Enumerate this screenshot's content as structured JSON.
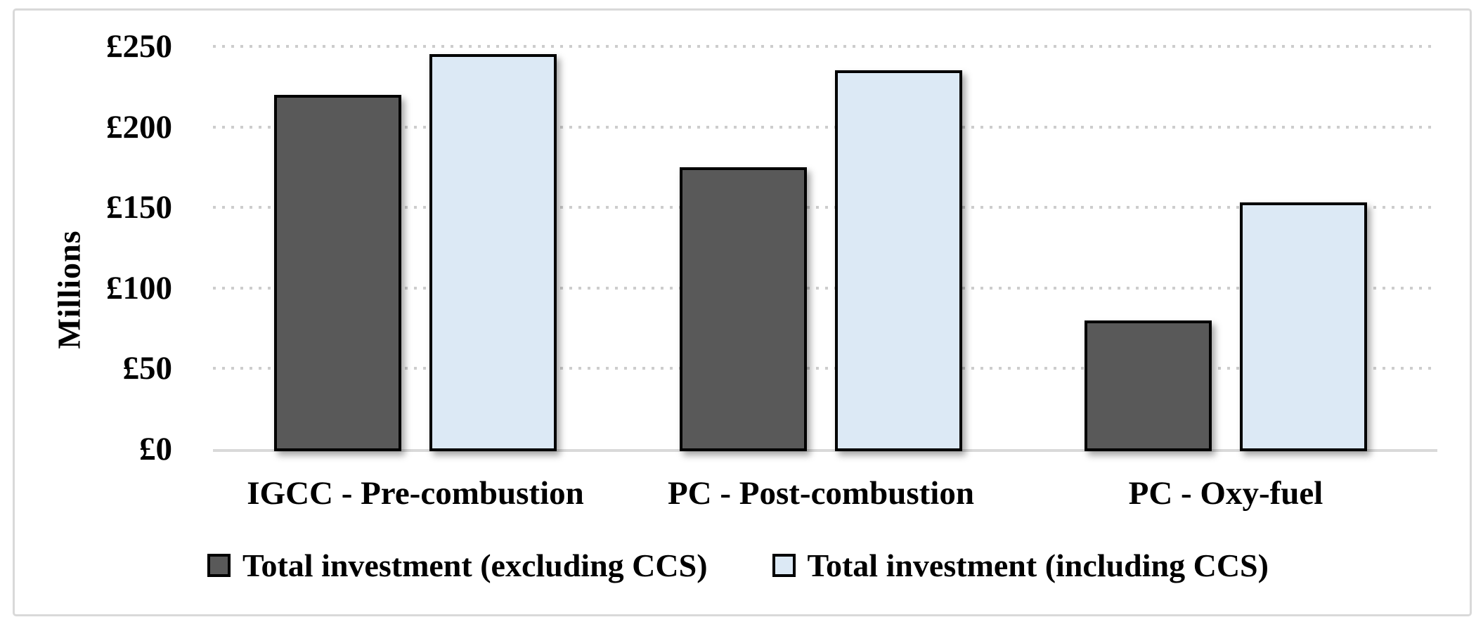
{
  "chart_data": {
    "type": "bar",
    "title": "",
    "xlabel": "",
    "ylabel": "Millions",
    "currency_prefix": "£",
    "categories": [
      "IGCC - Pre-combustion",
      "PC - Post-combustion",
      "PC - Oxy-fuel"
    ],
    "series": [
      {
        "name": "Total investment (excluding CCS)",
        "color": "#595959",
        "border_color": "#000000",
        "values": [
          220,
          175,
          80
        ]
      },
      {
        "name": "Total investment (including CCS)",
        "color": "#dce9f5",
        "border_color": "#000000",
        "values": [
          245,
          235,
          153
        ]
      }
    ],
    "ylim": [
      0,
      250
    ],
    "ytick_step": 50,
    "ytick_labels": [
      "£0",
      "£50",
      "£100",
      "£150",
      "£200",
      "£250"
    ],
    "grid": "horizontal-dotted",
    "grid_color": "#cdcdcd",
    "axis_line_color": "#d9d9d9",
    "legend_position": "bottom",
    "frame_border_color": "#d9d9d9",
    "background_color": "#ffffff"
  }
}
